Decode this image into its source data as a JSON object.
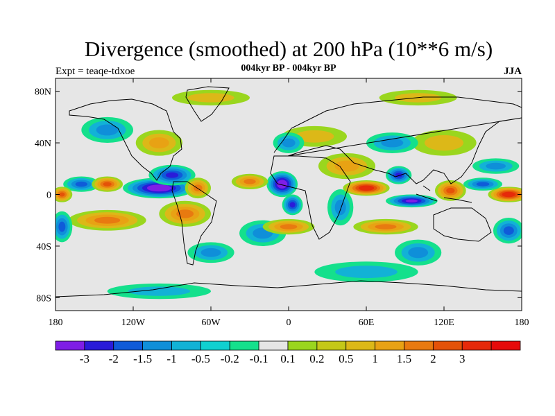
{
  "chart_data": {
    "type": "heatmap",
    "title": "Divergence (smoothed) at 200 hPa (10**6 m/s)",
    "subtitle_left": "Expt = teaqe-tdxoe",
    "subtitle_center": "004kyr BP - 004kyr BP",
    "subtitle_right": "JJA",
    "x_ticks": [
      {
        "lon": -180,
        "label": "180"
      },
      {
        "lon": -120,
        "label": "120W"
      },
      {
        "lon": -60,
        "label": "60W"
      },
      {
        "lon": 0,
        "label": "0"
      },
      {
        "lon": 60,
        "label": "60E"
      },
      {
        "lon": 120,
        "label": "120E"
      },
      {
        "lon": 180,
        "label": "180"
      }
    ],
    "y_ticks": [
      {
        "lat": 80,
        "label": "80N"
      },
      {
        "lat": 40,
        "label": "40N"
      },
      {
        "lat": 0,
        "label": "0"
      },
      {
        "lat": -40,
        "label": "40S"
      },
      {
        "lat": -80,
        "label": "80S"
      }
    ],
    "xlim": [
      -180,
      180
    ],
    "ylim": [
      -90,
      90
    ],
    "colorbar": {
      "colors": [
        "#7f1ee6",
        "#2a1bd9",
        "#0f5bd9",
        "#0f8fd9",
        "#12b2d6",
        "#10d0d0",
        "#14e08c",
        "#e6e6e6",
        "#9ad61e",
        "#c4c818",
        "#dcb818",
        "#e8a214",
        "#e87a10",
        "#e45208",
        "#e62a0a",
        "#e60a0a"
      ],
      "labels": [
        "-3",
        "-2",
        "-1.5",
        "-1",
        "-0.5",
        "-0.2",
        "-0.1",
        "0.1",
        "0.2",
        "0.5",
        "1",
        "1.5",
        "2",
        "3"
      ]
    },
    "field_features": [
      {
        "lon": -100,
        "lat": 5,
        "value": -3.5,
        "rx": 28,
        "ry": 8
      },
      {
        "lon": -90,
        "lat": 15,
        "value": -2.5,
        "rx": 18,
        "ry": 8
      },
      {
        "lon": -160,
        "lat": 8,
        "value": -1.8,
        "rx": 14,
        "ry": 6
      },
      {
        "lon": -5,
        "lat": 8,
        "value": -3.5,
        "rx": 12,
        "ry": 10
      },
      {
        "lon": 3,
        "lat": -8,
        "value": -2.5,
        "rx": 8,
        "ry": 8
      },
      {
        "lon": 85,
        "lat": 15,
        "value": -2.5,
        "rx": 10,
        "ry": 7
      },
      {
        "lon": 95,
        "lat": -5,
        "value": -3.0,
        "rx": 20,
        "ry": 5
      },
      {
        "lon": 150,
        "lat": 8,
        "value": -1.5,
        "rx": 15,
        "ry": 5
      },
      {
        "lon": 160,
        "lat": 22,
        "value": -1.2,
        "rx": 18,
        "ry": 6
      },
      {
        "lon": 80,
        "lat": 40,
        "value": -1.2,
        "rx": 20,
        "ry": 8
      },
      {
        "lon": -140,
        "lat": 50,
        "value": -1.0,
        "rx": 20,
        "ry": 10
      },
      {
        "lon": -175,
        "lat": -25,
        "value": -1.5,
        "rx": 8,
        "ry": 12
      },
      {
        "lon": 170,
        "lat": -28,
        "value": -1.5,
        "rx": 12,
        "ry": 10
      },
      {
        "lon": -20,
        "lat": -30,
        "value": -1.0,
        "rx": 18,
        "ry": 10
      },
      {
        "lon": -60,
        "lat": -45,
        "value": -1.0,
        "rx": 18,
        "ry": 8
      },
      {
        "lon": 60,
        "lat": -60,
        "value": -0.5,
        "rx": 40,
        "ry": 8
      },
      {
        "lon": -100,
        "lat": -75,
        "value": -0.5,
        "rx": 40,
        "ry": 6
      },
      {
        "lon": 0,
        "lat": 40,
        "value": -1.0,
        "rx": 12,
        "ry": 8
      },
      {
        "lon": 40,
        "lat": -10,
        "value": -1.0,
        "rx": 10,
        "ry": 14
      },
      {
        "lon": 100,
        "lat": -45,
        "value": -1.2,
        "rx": 18,
        "ry": 10
      },
      {
        "lon": 60,
        "lat": 5,
        "value": 3.5,
        "rx": 18,
        "ry": 6
      },
      {
        "lon": 170,
        "lat": 0,
        "value": 3.5,
        "rx": 16,
        "ry": 6
      },
      {
        "lon": 125,
        "lat": 3,
        "value": 2.0,
        "rx": 12,
        "ry": 8
      },
      {
        "lon": -140,
        "lat": 8,
        "value": 2.0,
        "rx": 12,
        "ry": 6
      },
      {
        "lon": -175,
        "lat": 0,
        "value": 2.0,
        "rx": 8,
        "ry": 6
      },
      {
        "lon": -70,
        "lat": 5,
        "value": 1.5,
        "rx": 10,
        "ry": 8
      },
      {
        "lon": -30,
        "lat": 10,
        "value": 1.5,
        "rx": 14,
        "ry": 6
      },
      {
        "lon": -140,
        "lat": -20,
        "value": 1.8,
        "rx": 30,
        "ry": 8
      },
      {
        "lon": -80,
        "lat": -15,
        "value": 1.5,
        "rx": 20,
        "ry": 10
      },
      {
        "lon": 0,
        "lat": -25,
        "value": 1.5,
        "rx": 20,
        "ry": 6
      },
      {
        "lon": 75,
        "lat": -25,
        "value": 1.5,
        "rx": 25,
        "ry": 6
      },
      {
        "lon": 45,
        "lat": 22,
        "value": 1.0,
        "rx": 22,
        "ry": 10
      },
      {
        "lon": -100,
        "lat": 40,
        "value": 1.0,
        "rx": 18,
        "ry": 10
      },
      {
        "lon": 20,
        "lat": 45,
        "value": 0.5,
        "rx": 25,
        "ry": 8
      },
      {
        "lon": 120,
        "lat": 40,
        "value": 0.5,
        "rx": 25,
        "ry": 10
      },
      {
        "lon": -60,
        "lat": 75,
        "value": 0.5,
        "rx": 30,
        "ry": 6
      },
      {
        "lon": 100,
        "lat": 75,
        "value": 0.5,
        "rx": 30,
        "ry": 6
      }
    ]
  }
}
